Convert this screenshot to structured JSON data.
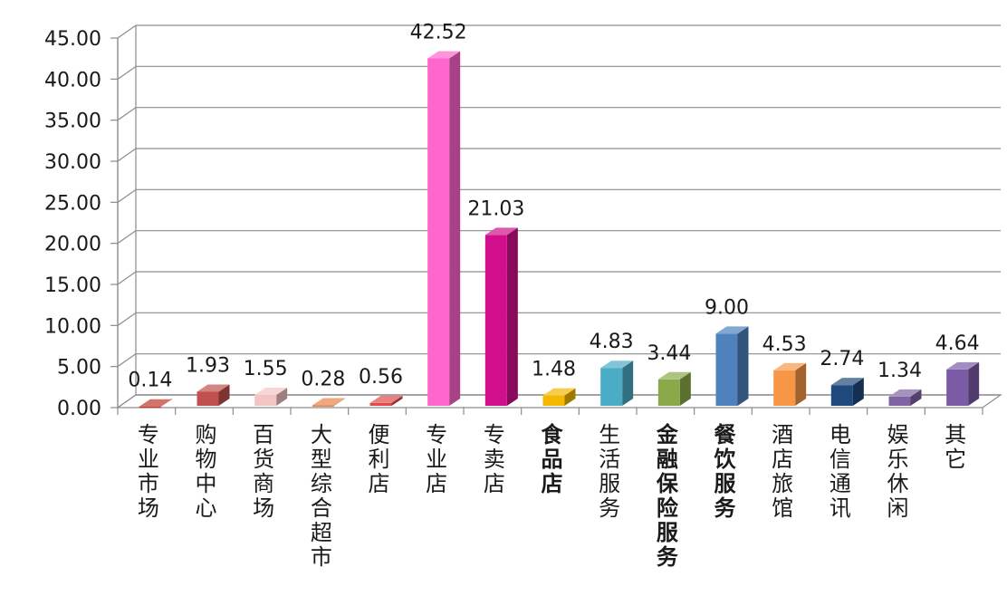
{
  "chart_data": {
    "type": "bar",
    "style": "3d-column",
    "categories": [
      "专业市场",
      "购物中心",
      "百货商场",
      "大型综合超市",
      "便利店",
      "专业店",
      "专卖店",
      "食品店",
      "生活服务",
      "金融保险服务",
      "餐饮服务",
      "酒店旅馆",
      "电信通讯",
      "娱乐休闲",
      "其它"
    ],
    "bold_categories": [
      "食品店",
      "金融保险服务",
      "餐饮服务"
    ],
    "values": [
      0.14,
      1.93,
      1.55,
      0.28,
      0.56,
      42.52,
      21.03,
      1.48,
      4.83,
      3.44,
      9.0,
      4.53,
      2.74,
      1.34,
      4.64
    ],
    "data_labels": [
      "0.14",
      "1.93",
      "1.55",
      "0.28",
      "0.56",
      "42.52",
      "21.03",
      "1.48",
      "4.83",
      "3.44",
      "9.00",
      "4.53",
      "2.74",
      "1.34",
      "4.64"
    ],
    "colors": [
      "#c0392b",
      "#c0504d",
      "#f2c4c4",
      "#e8844a",
      "#e24a4a",
      "#ff66cc",
      "#d10f8c",
      "#f5b800",
      "#4bacc6",
      "#8aaa4a",
      "#4f81bd",
      "#f79646",
      "#1f497d",
      "#8064a2",
      "#7b5aa6"
    ],
    "y_ticks": [
      "0.00",
      "5.00",
      "10.00",
      "15.00",
      "20.00",
      "25.00",
      "30.00",
      "35.00",
      "40.00",
      "45.00"
    ],
    "ylim": [
      0,
      45
    ],
    "grid": true,
    "legend": "none",
    "title": "",
    "xlabel": "",
    "ylabel": ""
  }
}
